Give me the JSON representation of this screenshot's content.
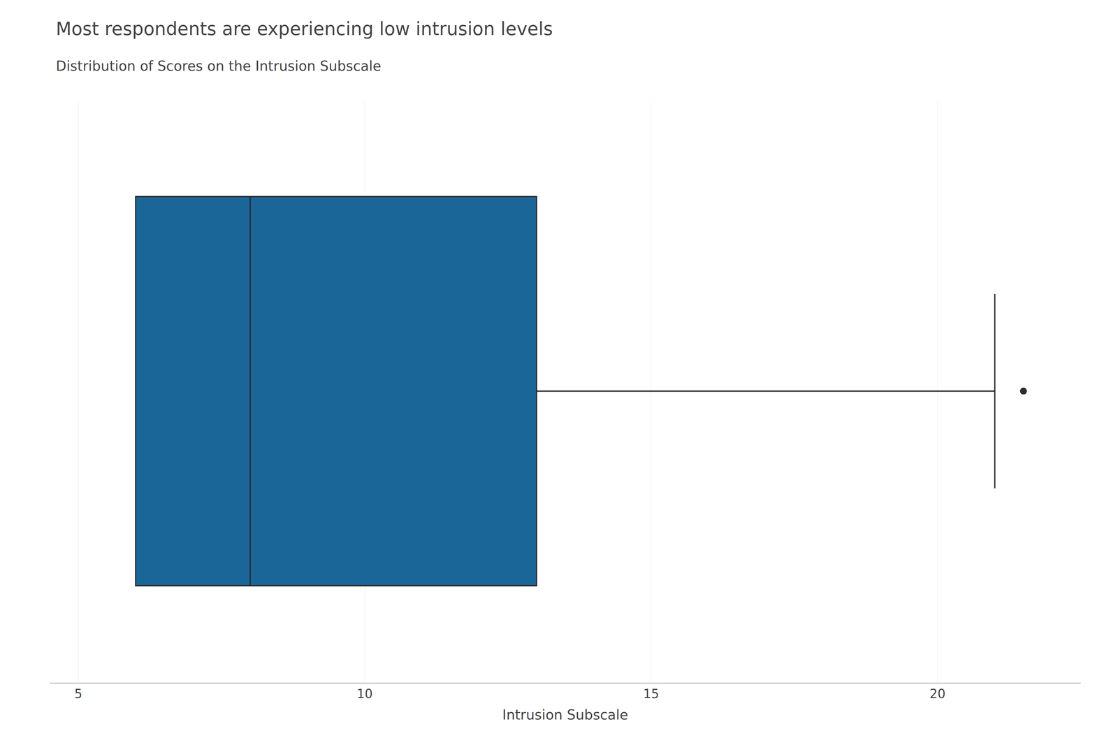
{
  "chart_data": {
    "type": "box",
    "orientation": "horizontal",
    "title": "Most respondents are experiencing low intrusion levels",
    "subtitle": "Distribution of Scores on the Intrusion Subscale",
    "xlabel": "Intrusion Subscale",
    "q1": 6.0,
    "median": 8.0,
    "q3": 13.0,
    "whisker_low": 6.0,
    "whisker_high": 21.0,
    "outliers": [
      21.5
    ],
    "color": "#1B6699",
    "xlim": [
      4.5,
      22.5
    ],
    "xticks": [
      5,
      10,
      15,
      20
    ],
    "grid": true,
    "tick_labels": "x"
  }
}
